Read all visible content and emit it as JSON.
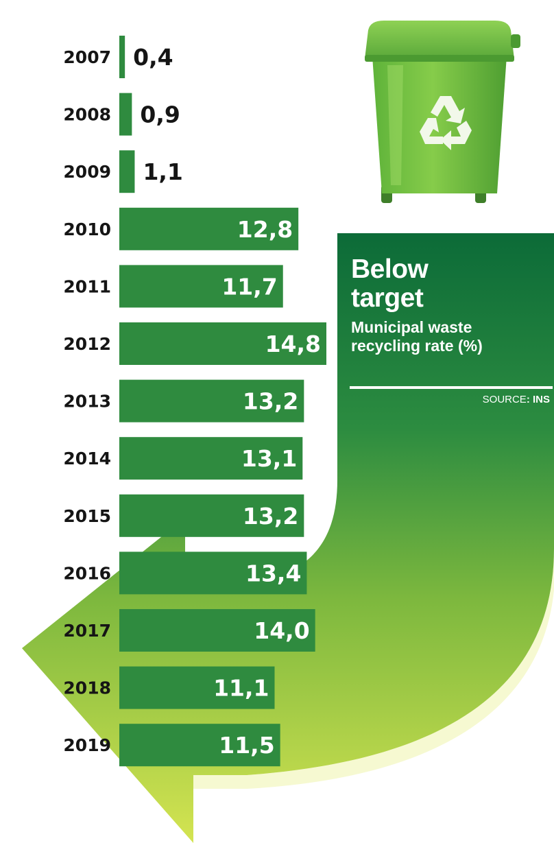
{
  "title": "Below\ntarget",
  "subtitle": "Municipal waste\nrecycling rate (%)",
  "source_label": "SOURCE",
  "source_value": ": INS",
  "colors": {
    "bar": "#2f8b3f",
    "bar_label": "#ffffff",
    "small_bar_label": "#151515",
    "arrow_dark": "#0c6b38",
    "arrow_light": "#cfe24f"
  },
  "icons": [
    "recycling-bin-icon",
    "recycle-symbol-icon",
    "curved-arrow-graphic"
  ],
  "chart_data": {
    "type": "bar",
    "orientation": "horizontal",
    "title": "Below target",
    "subtitle": "Municipal waste recycling rate (%)",
    "categories": [
      "2007",
      "2008",
      "2009",
      "2010",
      "2011",
      "2012",
      "2013",
      "2014",
      "2015",
      "2016",
      "2017",
      "2018",
      "2019"
    ],
    "values": [
      0.4,
      0.9,
      1.1,
      12.8,
      11.7,
      14.8,
      13.2,
      13.1,
      13.2,
      13.4,
      14.0,
      11.1,
      11.5
    ],
    "value_labels": [
      "0,4",
      "0,9",
      "1,1",
      "12,8",
      "11,7",
      "14,8",
      "13,2",
      "13,1",
      "13,2",
      "13,4",
      "14,0",
      "11,1",
      "11,5"
    ],
    "xlabel": "",
    "ylabel": "",
    "xlim": [
      0,
      14.8
    ],
    "grid": false,
    "legend": "none"
  }
}
